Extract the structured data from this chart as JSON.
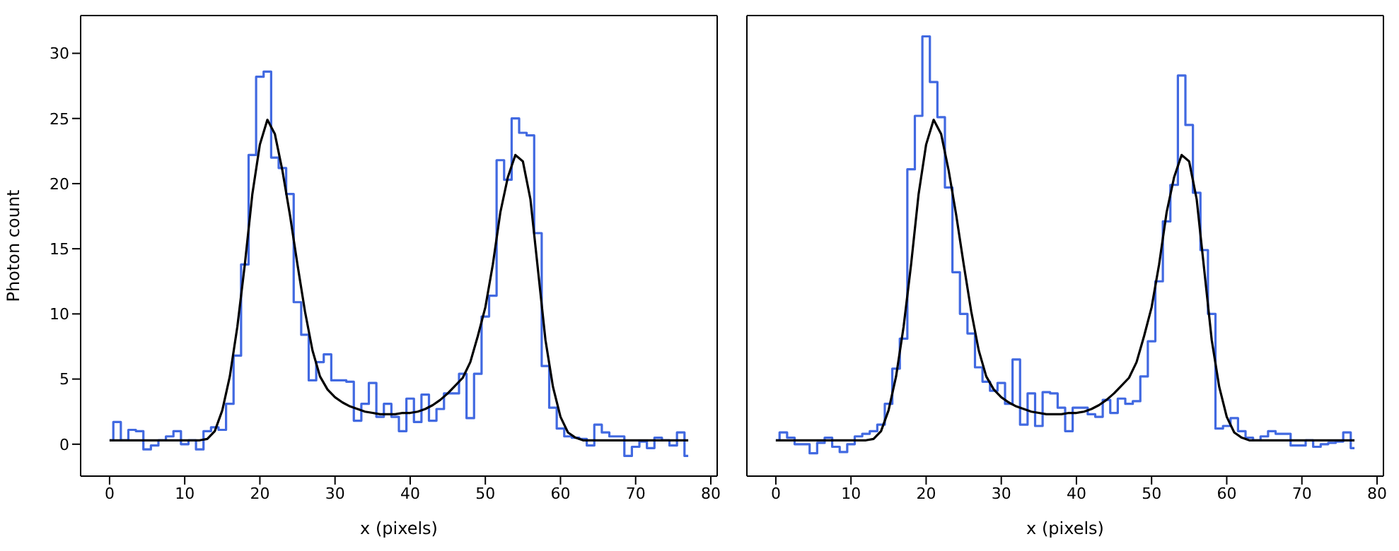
{
  "chart_data": [
    {
      "type": "line",
      "ylabel": "Photon count",
      "xlabel": "x (pixels)",
      "x": [
        0,
        1,
        2,
        3,
        4,
        5,
        6,
        7,
        8,
        9,
        10,
        11,
        12,
        13,
        14,
        15,
        16,
        17,
        18,
        19,
        20,
        21,
        22,
        23,
        24,
        25,
        26,
        27,
        28,
        29,
        30,
        31,
        32,
        33,
        34,
        35,
        36,
        37,
        38,
        39,
        40,
        41,
        42,
        43,
        44,
        45,
        46,
        47,
        48,
        49,
        50,
        51,
        52,
        53,
        54,
        55,
        56,
        57,
        58,
        59,
        60,
        61,
        62,
        63,
        64,
        65,
        66,
        67,
        68,
        69,
        70,
        71,
        72,
        73,
        74,
        75,
        76,
        77
      ],
      "xlim": [
        -3.85,
        80.85
      ],
      "xticks": [
        0,
        10,
        20,
        30,
        40,
        50,
        60,
        70,
        80
      ],
      "ylim": [
        -2.45,
        32.9
      ],
      "yticks": [
        0,
        5,
        10,
        15,
        20,
        25,
        30
      ],
      "series": [
        {
          "type": "step",
          "color": "#4169e1",
          "values": [
            0.3,
            1.7,
            0.3,
            1.1,
            1.0,
            -0.4,
            -0.1,
            0.3,
            0.6,
            1.0,
            0,
            0.3,
            -0.4,
            1.0,
            1.3,
            1.1,
            3.1,
            6.8,
            13.8,
            22.2,
            28.2,
            28.6,
            22.0,
            21.2,
            19.2,
            10.9,
            8.4,
            4.9,
            6.3,
            6.9,
            4.9,
            4.9,
            4.8,
            1.8,
            3.1,
            4.7,
            2.1,
            3.1,
            2.1,
            1.0,
            3.5,
            1.7,
            3.8,
            1.8,
            2.7,
            3.9,
            3.9,
            5.4,
            2.0,
            5.4,
            9.8,
            11.4,
            21.8,
            20.3,
            25.0,
            23.9,
            23.7,
            16.2,
            6.0,
            2.8,
            1.2,
            0.6,
            0.5,
            0.4,
            -0.1,
            1.5,
            0.9,
            0.6,
            0.6,
            -0.9,
            -0.2,
            0.2,
            -0.3,
            0.5,
            0.3,
            -0.1,
            0.9,
            -0.9
          ]
        },
        {
          "type": "line",
          "color": "#000000",
          "values": [
            0.3,
            0.3,
            0.3,
            0.3,
            0.3,
            0.3,
            0.3,
            0.3,
            0.3,
            0.3,
            0.3,
            0.3,
            0.3,
            0.4,
            1.0,
            2.6,
            5.2,
            9.0,
            13.8,
            19.2,
            23.0,
            24.9,
            23.8,
            21.0,
            17.6,
            13.8,
            10.2,
            7.2,
            5.2,
            4.2,
            3.6,
            3.2,
            2.9,
            2.7,
            2.5,
            2.4,
            2.3,
            2.3,
            2.3,
            2.4,
            2.4,
            2.5,
            2.7,
            3.0,
            3.4,
            3.9,
            4.5,
            5.1,
            6.3,
            8.3,
            10.5,
            13.8,
            17.8,
            20.5,
            22.2,
            21.7,
            18.8,
            13.4,
            8.0,
            4.4,
            2.1,
            0.9,
            0.5,
            0.3,
            0.3,
            0.3,
            0.3,
            0.3,
            0.3,
            0.3,
            0.3,
            0.3,
            0.3,
            0.3,
            0.3,
            0.3,
            0.3,
            0.3
          ]
        }
      ]
    },
    {
      "type": "line",
      "xlabel": "x (pixels)",
      "tick_labels": "x",
      "x": [
        0,
        1,
        2,
        3,
        4,
        5,
        6,
        7,
        8,
        9,
        10,
        11,
        12,
        13,
        14,
        15,
        16,
        17,
        18,
        19,
        20,
        21,
        22,
        23,
        24,
        25,
        26,
        27,
        28,
        29,
        30,
        31,
        32,
        33,
        34,
        35,
        36,
        37,
        38,
        39,
        40,
        41,
        42,
        43,
        44,
        45,
        46,
        47,
        48,
        49,
        50,
        51,
        52,
        53,
        54,
        55,
        56,
        57,
        58,
        59,
        60,
        61,
        62,
        63,
        64,
        65,
        66,
        67,
        68,
        69,
        70,
        71,
        72,
        73,
        74,
        75,
        76,
        77
      ],
      "xlim": [
        -3.85,
        80.85
      ],
      "xticks": [
        0,
        10,
        20,
        30,
        40,
        50,
        60,
        70,
        80
      ],
      "ylim": [
        -2.45,
        32.9
      ],
      "yticks": [
        0,
        5,
        10,
        15,
        20,
        25,
        30
      ],
      "series": [
        {
          "type": "step",
          "color": "#4169e1",
          "values": [
            0.3,
            0.9,
            0.5,
            0,
            0,
            -0.7,
            0.1,
            0.5,
            -0.2,
            -0.6,
            0,
            0.6,
            0.8,
            1.0,
            1.5,
            3.1,
            5.8,
            8.1,
            21.1,
            25.2,
            31.3,
            27.8,
            25.1,
            19.7,
            13.2,
            10.0,
            8.5,
            5.9,
            4.8,
            4.1,
            4.7,
            3.1,
            6.5,
            1.5,
            3.9,
            1.4,
            4.0,
            3.9,
            2.8,
            1.0,
            2.8,
            2.8,
            2.3,
            2.1,
            3.4,
            2.4,
            3.5,
            3.1,
            3.3,
            5.2,
            7.9,
            12.5,
            17.1,
            19.9,
            28.3,
            24.5,
            19.3,
            14.9,
            10.0,
            1.2,
            1.4,
            2.0,
            1.0,
            0.5,
            0.3,
            0.6,
            1.0,
            0.8,
            0.8,
            -0.1,
            -0.1,
            0.3,
            -0.2,
            0,
            0.1,
            0.2,
            0.9,
            -0.3
          ]
        },
        {
          "type": "line",
          "color": "#000000",
          "values": [
            0.3,
            0.3,
            0.3,
            0.3,
            0.3,
            0.3,
            0.3,
            0.3,
            0.3,
            0.3,
            0.3,
            0.3,
            0.3,
            0.4,
            1.0,
            2.6,
            5.2,
            9.0,
            13.8,
            19.2,
            23.0,
            24.9,
            23.8,
            21.0,
            17.6,
            13.8,
            10.2,
            7.2,
            5.2,
            4.2,
            3.6,
            3.2,
            2.9,
            2.7,
            2.5,
            2.4,
            2.3,
            2.3,
            2.3,
            2.4,
            2.4,
            2.5,
            2.7,
            3.0,
            3.4,
            3.9,
            4.5,
            5.1,
            6.3,
            8.3,
            10.5,
            13.8,
            17.8,
            20.5,
            22.2,
            21.7,
            18.8,
            13.4,
            8.0,
            4.4,
            2.1,
            0.9,
            0.5,
            0.3,
            0.3,
            0.3,
            0.3,
            0.3,
            0.3,
            0.3,
            0.3,
            0.3,
            0.3,
            0.3,
            0.3,
            0.3,
            0.3,
            0.3
          ]
        }
      ]
    }
  ]
}
